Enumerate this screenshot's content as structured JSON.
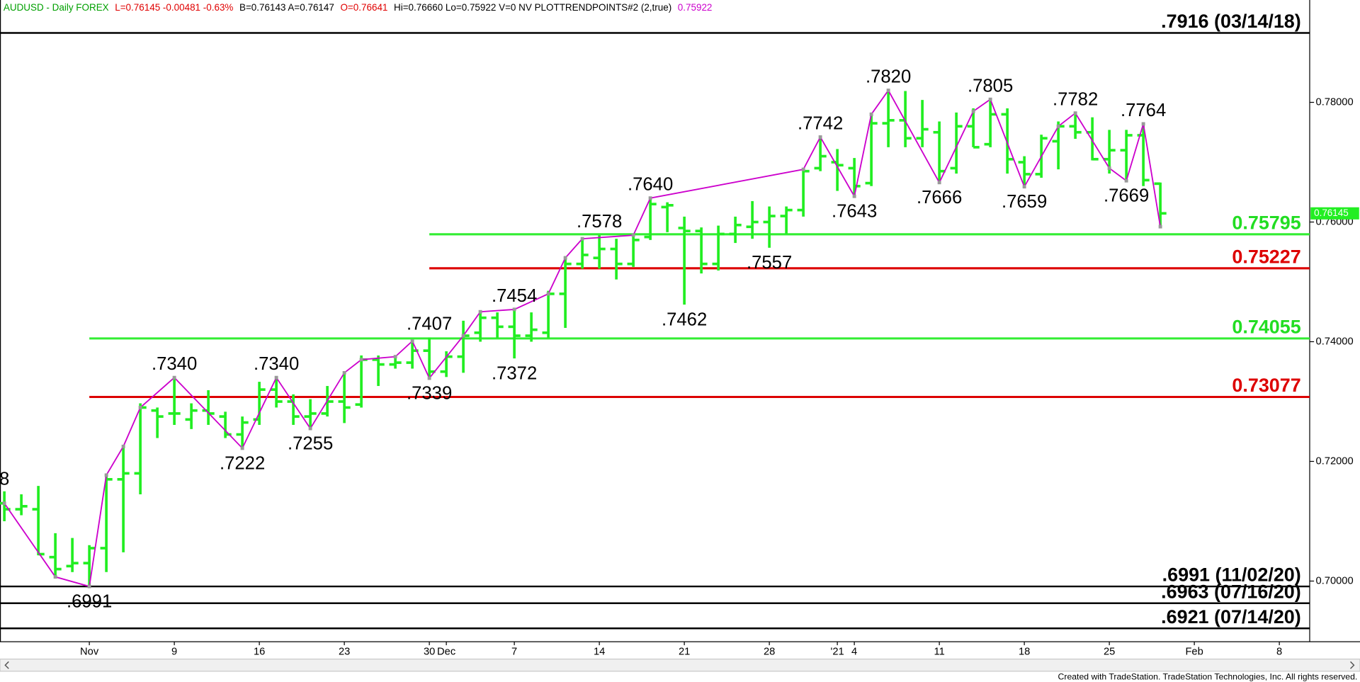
{
  "chart_data": {
    "type": "ohlc",
    "header": [
      {
        "text": "AUDUSD - Daily  FOREX",
        "color": "#00a000"
      },
      {
        "text": "L=0.76145  -0.00481  -0.63%",
        "color": "#e00000"
      },
      {
        "text": "B=0.76143  A=0.76147",
        "color": "#000000"
      },
      {
        "text": "O=0.76641",
        "color": "#e00000"
      },
      {
        "text": "Hi=0.76660  Lo=0.75922  V=0  NV  PLOTTRENDPOINTS#2 (2,true)",
        "color": "#000000"
      },
      {
        "text": "0.75922",
        "color": "#cc00cc"
      }
    ],
    "categories": [
      null,
      null,
      null,
      null,
      null,
      "Nov",
      null,
      null,
      null,
      null,
      "9",
      null,
      null,
      null,
      null,
      "16",
      null,
      null,
      null,
      null,
      "23",
      null,
      null,
      null,
      null,
      "30",
      "Dec",
      null,
      null,
      null,
      "7",
      null,
      null,
      null,
      null,
      "14",
      null,
      null,
      null,
      null,
      "21",
      null,
      null,
      null,
      null,
      "28",
      null,
      null,
      null,
      "'21",
      "4",
      null,
      null,
      null,
      null,
      "11",
      null,
      null,
      null,
      null,
      "18",
      null,
      null,
      null,
      null,
      "25",
      null,
      null,
      null,
      null,
      "Feb",
      null,
      null,
      null,
      null,
      "8",
      null
    ],
    "open": [
      0.713,
      0.712,
      0.712,
      0.704,
      0.7025,
      0.703,
      0.7055,
      0.717,
      0.718,
      0.7285,
      0.728,
      0.727,
      0.7285,
      0.7275,
      0.7245,
      0.727,
      0.732,
      0.73,
      0.7275,
      0.728,
      0.73,
      0.7295,
      0.737,
      0.7362,
      0.7365,
      0.7385,
      0.735,
      0.7375,
      0.7415,
      0.744,
      0.7425,
      0.741,
      0.7415,
      0.748,
      0.753,
      0.754,
      0.7555,
      0.753,
      0.7575,
      0.7625,
      0.759,
      0.7585,
      0.753,
      0.758,
      0.7592,
      0.76,
      0.761,
      0.762,
      0.769,
      0.77,
      0.769,
      0.7665,
      0.7765,
      0.777,
      0.774,
      0.775,
      0.769,
      0.776,
      0.773,
      0.778,
      0.77,
      0.768,
      0.7735,
      0.776,
      0.775,
      0.7705,
      0.772,
      0.7745,
      0.76641,
      null,
      null,
      null,
      null,
      null,
      null,
      null,
      null
    ],
    "high": [
      0.715,
      0.7145,
      0.7159,
      0.708,
      0.7072,
      0.706,
      0.7177,
      0.7225,
      0.7297,
      0.729,
      0.734,
      0.7297,
      0.7319,
      0.7283,
      0.7275,
      0.7333,
      0.734,
      0.7312,
      0.7304,
      0.7326,
      0.7348,
      0.7377,
      0.7377,
      0.7377,
      0.7401,
      0.7407,
      0.7384,
      0.7435,
      0.745,
      0.7449,
      0.7454,
      0.7449,
      0.7485,
      0.7543,
      0.7572,
      0.7578,
      0.7572,
      0.7578,
      0.764,
      0.7633,
      0.7609,
      0.7591,
      0.7594,
      0.7609,
      0.7635,
      0.7626,
      0.7626,
      0.7688,
      0.7742,
      0.7722,
      0.7707,
      0.7783,
      0.782,
      0.7819,
      0.7804,
      0.7768,
      0.7783,
      0.779,
      0.7805,
      0.779,
      0.771,
      0.7746,
      0.7768,
      0.7782,
      0.7775,
      0.7754,
      0.7754,
      0.7764,
      0.7666,
      null,
      null,
      null,
      null,
      null,
      null,
      null,
      null
    ],
    "low": [
      0.71,
      0.711,
      0.7043,
      0.7007,
      0.7015,
      0.6991,
      0.7015,
      0.7048,
      0.7145,
      0.7239,
      0.7261,
      0.7254,
      0.7261,
      0.7239,
      0.7222,
      0.7261,
      0.729,
      0.7261,
      0.7255,
      0.7275,
      0.7264,
      0.729,
      0.7326,
      0.7355,
      0.7355,
      0.7339,
      0.7341,
      0.7348,
      0.74,
      0.7406,
      0.7372,
      0.74,
      0.7406,
      0.7423,
      0.7522,
      0.7522,
      0.7504,
      0.7525,
      0.757,
      0.7583,
      0.7462,
      0.7514,
      0.7519,
      0.7565,
      0.7572,
      0.7557,
      0.758,
      0.7609,
      0.7685,
      0.7652,
      0.7643,
      0.766,
      0.7725,
      0.7725,
      0.7725,
      0.7666,
      0.7681,
      0.7725,
      0.7725,
      0.7681,
      0.7659,
      0.7674,
      0.7688,
      0.7739,
      0.7703,
      0.7681,
      0.7669,
      0.766,
      0.75922,
      null,
      null,
      null,
      null,
      null,
      null,
      null,
      null
    ],
    "close": [
      0.712,
      0.7125,
      0.7045,
      0.702,
      0.703,
      0.7055,
      0.717,
      0.718,
      0.729,
      0.7275,
      0.728,
      0.7285,
      0.728,
      0.7245,
      0.7265,
      0.732,
      0.73,
      0.7275,
      0.728,
      0.73,
      0.729,
      0.737,
      0.7362,
      0.7365,
      0.7385,
      0.735,
      0.7375,
      0.741,
      0.744,
      0.7425,
      0.741,
      0.742,
      0.748,
      0.753,
      0.7545,
      0.7555,
      0.753,
      0.757,
      0.763,
      0.7628,
      0.7585,
      0.753,
      0.758,
      0.7595,
      0.76,
      0.761,
      0.762,
      0.7685,
      0.771,
      0.7695,
      0.766,
      0.7765,
      0.777,
      0.774,
      0.7755,
      0.7685,
      0.776,
      0.7725,
      0.778,
      0.7705,
      0.768,
      0.774,
      0.776,
      0.775,
      0.7705,
      0.772,
      0.7745,
      0.767,
      0.76145,
      null,
      null,
      null,
      null,
      null,
      null,
      null,
      null
    ],
    "color": "#22ee22",
    "trend": {
      "color": "#cc00cc",
      "x": [
        0,
        3,
        5,
        6,
        7,
        8,
        10,
        14,
        16,
        18,
        20,
        21,
        23,
        24,
        25,
        27,
        28,
        30,
        32,
        33,
        34,
        37,
        38,
        47,
        48,
        50,
        51,
        52,
        55,
        57,
        58,
        60,
        62,
        63,
        65,
        66,
        67,
        68
      ],
      "values": [
        0.713,
        0.7007,
        0.6991,
        0.7177,
        0.7225,
        0.729,
        0.734,
        0.7222,
        0.734,
        0.7255,
        0.7348,
        0.737,
        0.7375,
        0.7401,
        0.7339,
        0.741,
        0.745,
        0.7454,
        0.748,
        0.754,
        0.7572,
        0.7578,
        0.764,
        0.7688,
        0.7742,
        0.7643,
        0.778,
        0.782,
        0.7666,
        0.7785,
        0.7805,
        0.7659,
        0.776,
        0.7782,
        0.769,
        0.7669,
        0.7764,
        0.75922
      ]
    },
    "pivot_labels": [
      {
        "index": 0,
        "value": 0.7148,
        "label": "8",
        "side": "above"
      },
      {
        "index": 5,
        "value": 0.6991,
        "label": ".6991",
        "side": "below"
      },
      {
        "index": 10,
        "value": 0.734,
        "label": ".7340",
        "side": "above"
      },
      {
        "index": 14,
        "value": 0.7222,
        "label": ".7222",
        "side": "below"
      },
      {
        "index": 16,
        "value": 0.734,
        "label": ".7340",
        "side": "above"
      },
      {
        "index": 18,
        "value": 0.7255,
        "label": ".7255",
        "side": "below"
      },
      {
        "index": 25,
        "value": 0.7407,
        "label": ".7407",
        "side": "above"
      },
      {
        "index": 25,
        "value": 0.7339,
        "label": ".7339",
        "side": "below"
      },
      {
        "index": 30,
        "value": 0.7454,
        "label": ".7454",
        "side": "above"
      },
      {
        "index": 30,
        "value": 0.7372,
        "label": ".7372",
        "side": "below"
      },
      {
        "index": 35,
        "value": 0.7578,
        "label": ".7578",
        "side": "above"
      },
      {
        "index": 38,
        "value": 0.764,
        "label": ".7640",
        "side": "above"
      },
      {
        "index": 40,
        "value": 0.7462,
        "label": ".7462",
        "side": "below"
      },
      {
        "index": 45,
        "value": 0.7557,
        "label": ".7557",
        "side": "below"
      },
      {
        "index": 48,
        "value": 0.7742,
        "label": ".7742",
        "side": "above"
      },
      {
        "index": 50,
        "value": 0.7643,
        "label": ".7643",
        "side": "below"
      },
      {
        "index": 52,
        "value": 0.782,
        "label": ".7820",
        "side": "above"
      },
      {
        "index": 55,
        "value": 0.7666,
        "label": ".7666",
        "side": "below"
      },
      {
        "index": 58,
        "value": 0.7805,
        "label": ".7805",
        "side": "above"
      },
      {
        "index": 60,
        "value": 0.7659,
        "label": ".7659",
        "side": "below"
      },
      {
        "index": 63,
        "value": 0.7782,
        "label": ".7782",
        "side": "above"
      },
      {
        "index": 66,
        "value": 0.7669,
        "label": ".7669",
        "side": "below"
      },
      {
        "index": 67,
        "value": 0.7764,
        "label": ".7764",
        "side": "above"
      }
    ],
    "levels": [
      {
        "value": 0.7916,
        "label": ".7916 (03/14/18)",
        "color": "#000000"
      },
      {
        "value": 0.75795,
        "color": "#33ee33",
        "start": 25
      },
      {
        "value": 0.75227,
        "color": "#dd0000",
        "start": 25
      },
      {
        "value": 0.74055,
        "color": "#33ee33",
        "start": 5
      },
      {
        "value": 0.73077,
        "color": "#dd0000",
        "start": 5
      },
      {
        "value": 0.6991,
        "label": ".6991 (11/02/20)",
        "color": "#000000"
      },
      {
        "value": 0.6963,
        "label": ".6963 (07/16/20)",
        "color": "#000000"
      },
      {
        "value": 0.6921,
        "label": ".6921 (07/14/20)",
        "color": "#000000"
      }
    ],
    "last_price": 0.76145,
    "ylim": [
      0.68986,
      0.7971
    ],
    "yticks": [
      {
        "value": 0.7,
        "label": "0.70000"
      },
      {
        "value": 0.72,
        "label": "0.72000"
      },
      {
        "value": 0.74,
        "label": "0.74000"
      },
      {
        "value": 0.76,
        "label": "0.76000"
      },
      {
        "value": 0.78,
        "label": "0.78000"
      }
    ],
    "footer": "Created with TradeStation. TradeStation Technologies, Inc. All rights reserved."
  }
}
